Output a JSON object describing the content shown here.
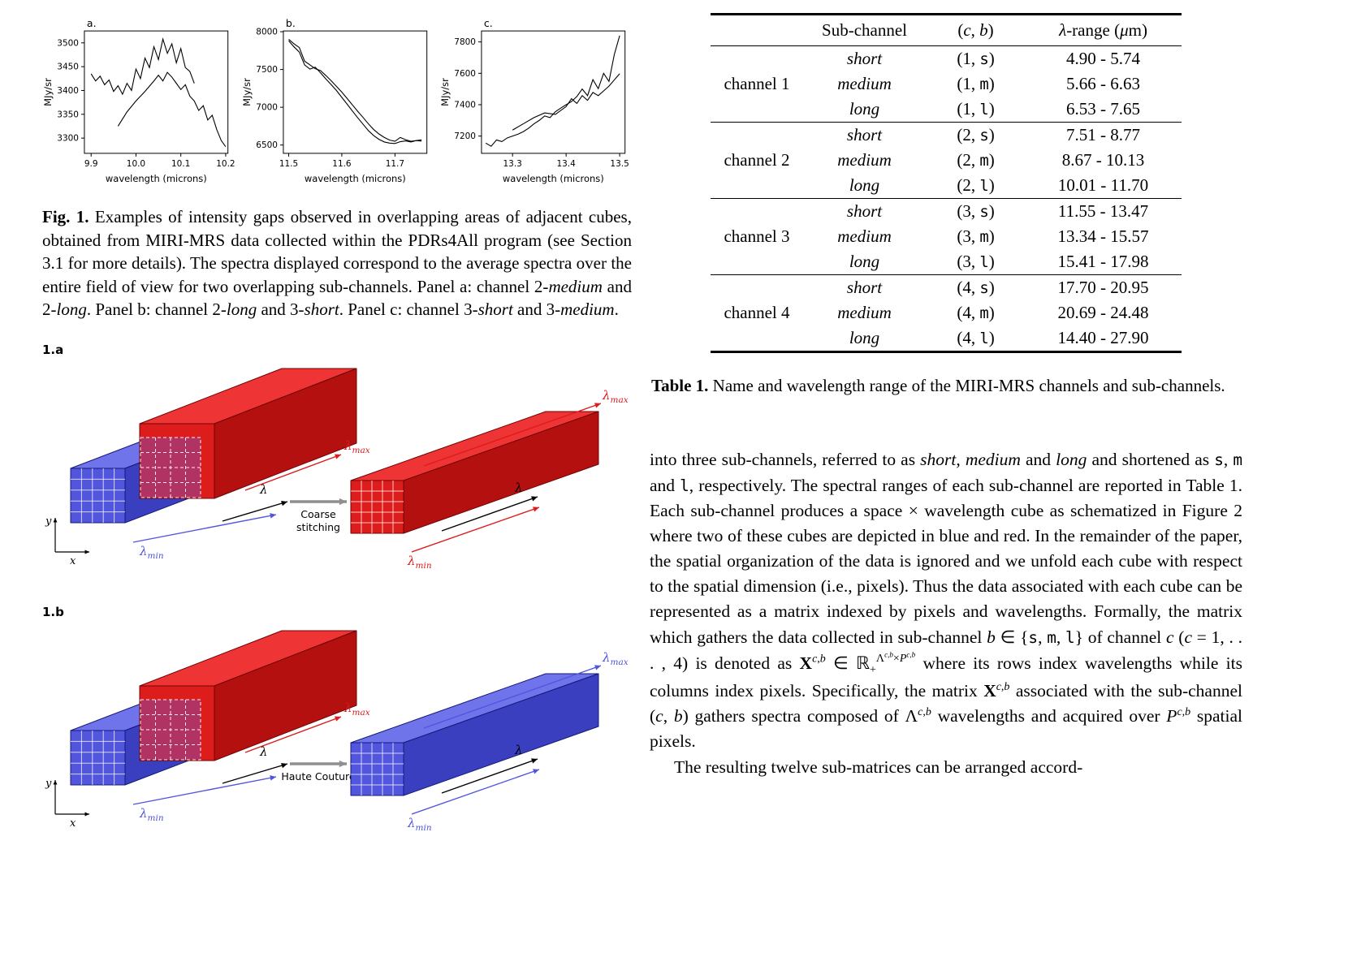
{
  "figure1": {
    "caption_html": "<b>Fig. 1.</b> Examples of intensity gaps observed in overlapping areas of adjacent cubes, obtained from MIRI-MRS data collected within the PDRs4All program (see Section 3.1 for more details). The spectra displayed correspond to the average spectra over the entire field of view for two overlapping sub-channels. Panel a: channel 2-<i>medium</i> and 2-<i>long</i>. Panel b: channel 2-<i>long</i> and 3-<i>short</i>. Panel c: channel 3-<i>short</i> and 3-<i>medium</i>."
  },
  "chart_data": [
    {
      "type": "line",
      "label": "a.",
      "xlabel": "wavelength (microns)",
      "ylabel": "MJy/sr",
      "xlim": [
        9.885,
        10.205
      ],
      "ylim": [
        3268,
        3525
      ],
      "xticks": [
        "9.9",
        "10.0",
        "10.1",
        "10.2"
      ],
      "yticks": [
        "3300",
        "3350",
        "3400",
        "3450",
        "3500"
      ],
      "series": [
        {
          "name": "channel 2-medium",
          "x": [
            9.9,
            9.91,
            9.92,
            9.93,
            9.94,
            9.95,
            9.96,
            9.97,
            9.98,
            9.99,
            10.0,
            10.01,
            10.02,
            10.03,
            10.04,
            10.05,
            10.06,
            10.07,
            10.08,
            10.09,
            10.1,
            10.11,
            10.12,
            10.13
          ],
          "y": [
            3435,
            3420,
            3430,
            3412,
            3422,
            3398,
            3410,
            3392,
            3415,
            3400,
            3445,
            3425,
            3468,
            3448,
            3492,
            3465,
            3508,
            3478,
            3498,
            3458,
            3488,
            3448,
            3440,
            3415
          ]
        },
        {
          "name": "channel 2-long",
          "x": [
            9.96,
            9.98,
            10.0,
            10.02,
            10.04,
            10.05,
            10.06,
            10.07,
            10.08,
            10.09,
            10.1,
            10.11,
            10.12,
            10.13,
            10.14,
            10.15,
            10.16,
            10.17,
            10.18,
            10.19,
            10.2
          ],
          "y": [
            3325,
            3355,
            3378,
            3398,
            3420,
            3432,
            3420,
            3438,
            3428,
            3415,
            3402,
            3412,
            3388,
            3378,
            3358,
            3368,
            3338,
            3348,
            3318,
            3295,
            3282
          ]
        }
      ]
    },
    {
      "type": "line",
      "label": "b.",
      "xlabel": "wavelength (microns)",
      "ylabel": "MJy/sr",
      "xlim": [
        11.49,
        11.76
      ],
      "ylim": [
        6390,
        8010
      ],
      "xticks": [
        "11.5",
        "11.6",
        "11.7"
      ],
      "yticks": [
        "6500",
        "7000",
        "7500",
        "8000"
      ],
      "series": [
        {
          "name": "channel 2-long",
          "x": [
            11.5,
            11.51,
            11.52,
            11.53,
            11.54,
            11.55,
            11.56,
            11.57,
            11.58,
            11.59,
            11.6,
            11.61,
            11.62,
            11.63,
            11.64,
            11.65,
            11.66,
            11.67,
            11.68,
            11.69,
            11.7,
            11.71,
            11.72,
            11.73,
            11.74,
            11.75
          ],
          "y": [
            7900,
            7840,
            7790,
            7610,
            7560,
            7510,
            7485,
            7420,
            7350,
            7275,
            7200,
            7115,
            7030,
            6945,
            6865,
            6780,
            6705,
            6645,
            6600,
            6565,
            6550,
            6600,
            6570,
            6550,
            6558,
            6552
          ]
        },
        {
          "name": "channel 3-short",
          "x": [
            11.5,
            11.51,
            11.52,
            11.53,
            11.54,
            11.55,
            11.56,
            11.57,
            11.58,
            11.59,
            11.6,
            11.61,
            11.62,
            11.63,
            11.64,
            11.65,
            11.66,
            11.67,
            11.68,
            11.69,
            11.7,
            11.71,
            11.72,
            11.73,
            11.74,
            11.75
          ],
          "y": [
            7880,
            7800,
            7730,
            7560,
            7505,
            7530,
            7455,
            7375,
            7300,
            7220,
            7130,
            7040,
            6950,
            6860,
            6775,
            6690,
            6625,
            6575,
            6540,
            6525,
            6520,
            6545,
            6555,
            6540,
            6560,
            6568
          ]
        }
      ]
    },
    {
      "type": "line",
      "label": "c.",
      "xlabel": "wavelength (microns)",
      "ylabel": "MJy/sr",
      "xlim": [
        13.242,
        13.51
      ],
      "ylim": [
        7090,
        7870
      ],
      "xticks": [
        "13.3",
        "13.4",
        "13.5"
      ],
      "yticks": [
        "7200",
        "7400",
        "7600",
        "7800"
      ],
      "series": [
        {
          "name": "channel 3-short",
          "x": [
            13.25,
            13.26,
            13.27,
            13.28,
            13.29,
            13.3,
            13.31,
            13.32,
            13.33,
            13.34,
            13.35,
            13.36,
            13.37,
            13.38,
            13.39,
            13.4,
            13.41,
            13.42,
            13.43,
            13.44,
            13.45,
            13.46,
            13.47,
            13.48,
            13.49,
            13.5
          ],
          "y": [
            7155,
            7135,
            7175,
            7165,
            7188,
            7200,
            7212,
            7228,
            7250,
            7278,
            7300,
            7328,
            7318,
            7355,
            7378,
            7400,
            7420,
            7452,
            7500,
            7458,
            7560,
            7502,
            7600,
            7548,
            7720,
            7840
          ]
        },
        {
          "name": "channel 3-medium",
          "x": [
            13.3,
            13.32,
            13.34,
            13.36,
            13.38,
            13.4,
            13.41,
            13.42,
            13.43,
            13.44,
            13.45,
            13.46,
            13.47,
            13.48,
            13.49,
            13.5
          ],
          "y": [
            7238,
            7278,
            7318,
            7348,
            7338,
            7388,
            7438,
            7408,
            7458,
            7428,
            7478,
            7458,
            7488,
            7518,
            7558,
            7598
          ]
        }
      ]
    }
  ],
  "figure2": {
    "label_a": "1.a",
    "label_b": "1.b",
    "caption_a_lines": [
      "Coarse",
      "stitching"
    ],
    "caption_b_lines": [
      "Haute Couture"
    ],
    "labels": {
      "lambda": "λ",
      "max": "max",
      "min": "min",
      "x": "x",
      "y": "y"
    },
    "colors": {
      "red": {
        "front": "#dd1c1c",
        "top": "#ee3434",
        "side": "#b51010",
        "edge": "#6e0505"
      },
      "blue": {
        "front": "#5156dd",
        "top": "#6f74ea",
        "side": "#3a3fc0",
        "edge": "#14187a"
      },
      "arrow_gray": "#8f8f8f"
    }
  },
  "table": {
    "headers_html": [
      "",
      "Sub-channel",
      "(<i>c</i>, <i>b</i>)",
      "<i>λ</i>-range (<i>μ</i>m)"
    ],
    "groups": [
      {
        "channel": "channel 1",
        "rows": [
          [
            "short",
            "(1, <span class='tt'>s</span>)",
            "4.90 - 5.74"
          ],
          [
            "medium",
            "(1, <span class='tt'>m</span>)",
            "5.66 - 6.63"
          ],
          [
            "long",
            "(1, <span class='tt'>l</span>)",
            "6.53 - 7.65"
          ]
        ]
      },
      {
        "channel": "channel 2",
        "rows": [
          [
            "short",
            "(2, <span class='tt'>s</span>)",
            "7.51 - 8.77"
          ],
          [
            "medium",
            "(2, <span class='tt'>m</span>)",
            "8.67 - 10.13"
          ],
          [
            "long",
            "(2, <span class='tt'>l</span>)",
            "10.01 - 11.70"
          ]
        ]
      },
      {
        "channel": "channel 3",
        "rows": [
          [
            "short",
            "(3, <span class='tt'>s</span>)",
            "11.55 - 13.47"
          ],
          [
            "medium",
            "(3, <span class='tt'>m</span>)",
            "13.34 - 15.57"
          ],
          [
            "long",
            "(3, <span class='tt'>l</span>)",
            "15.41 - 17.98"
          ]
        ]
      },
      {
        "channel": "channel 4",
        "rows": [
          [
            "short",
            "(4, <span class='tt'>s</span>)",
            "17.70 - 20.95"
          ],
          [
            "medium",
            "(4, <span class='tt'>m</span>)",
            "20.69 - 24.48"
          ],
          [
            "long",
            "(4, <span class='tt'>l</span>)",
            "14.40 - 27.90"
          ]
        ]
      }
    ],
    "caption_html": "<b>Table 1.</b> Name and wavelength range of the MIRI-MRS channels and sub-channels."
  },
  "text": {
    "para1_html": "into three sub-channels, referred to as <i>short</i>, <i>medium</i> and <i>long</i> and shortened as <span class='tt'>s</span>, <span class='tt'>m</span> and <span class='tt'>l</span>, respectively. The spectral ranges of each sub-channel are reported in Table 1. Each sub-channel produces a space × wavelength cube as schematized in Figure 2 where two of these cubes are depicted in blue and red. In the remainder of the paper, the spatial organization of the data is ignored and we unfold each cube with respect to the spatial dimension (i.e., pixels). Thus the data associated with each cube can be represented as a matrix indexed by pixels and wavelengths. Formally, the matrix which gathers the data collected in sub-channel <i>b</i> ∈ {<span class='tt'>s</span>, <span class='tt'>m</span>, <span class='tt'>l</span>} of channel <i>c</i> (<i>c</i> = 1, . . . , 4) is denoted as <b>X</b><sup><i>c</i>,<i>b</i></sup> ∈ ℝ<sub>+</sub><sup>Λ<sup><i>c</i>,<i>b</i></sup>×<i>P</i><sup><i>c</i>,<i>b</i></sup></sup> where its rows index wavelengths while its columns index pixels. Specifically, the matrix <b>X</b><sup><i>c</i>,<i>b</i></sup> associated with the sub-channel (<i>c</i>, <i>b</i>) gathers spectra composed of Λ<sup><i>c</i>,<i>b</i></sup> wavelengths and acquired over <i>P</i><sup><i>c</i>,<i>b</i></sup> spatial pixels.",
    "para2": "The resulting twelve sub-matrices can be arranged accord-"
  }
}
